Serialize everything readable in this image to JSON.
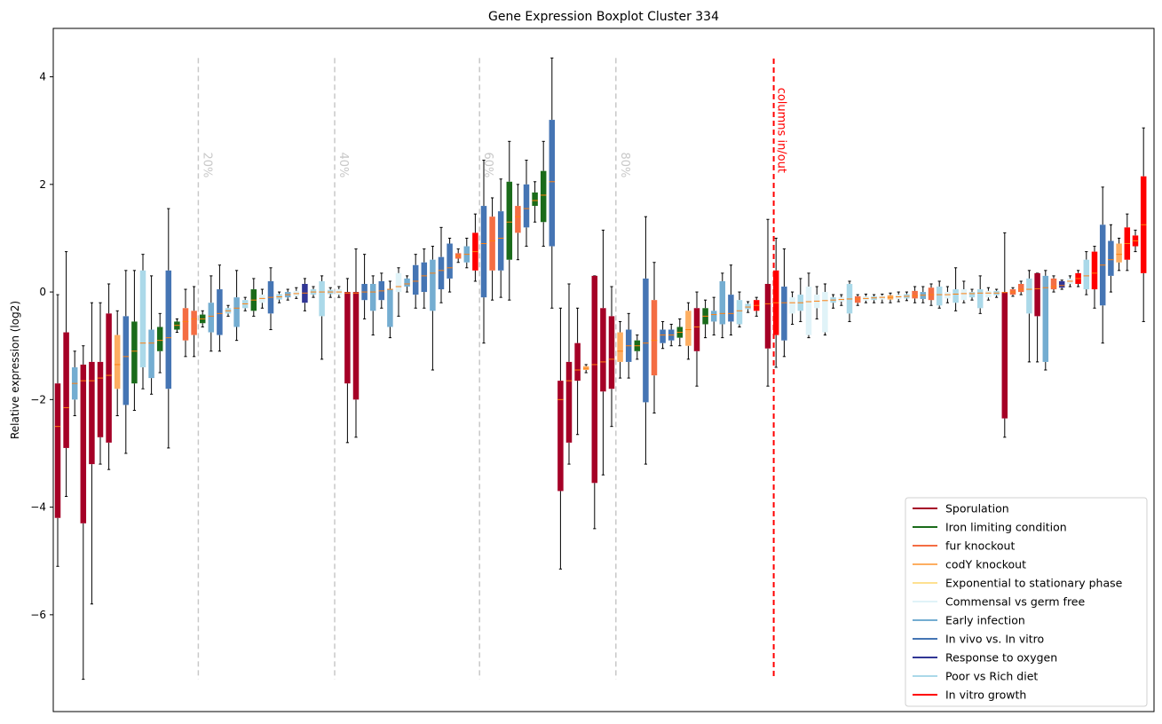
{
  "chart_data": {
    "type": "boxplot",
    "title": "Gene Expression Boxplot Cluster 334",
    "ylabel": "Relative expression (log2)",
    "xlabel": "",
    "ylim": [
      -7.8,
      4.9
    ],
    "yticks": [
      -6,
      -4,
      -2,
      0,
      2,
      4
    ],
    "grid": false,
    "legend_position": "lower-right",
    "percentile_markers": [
      {
        "label": "20%",
        "after_index": 16
      },
      {
        "label": "40%",
        "after_index": 32
      },
      {
        "label": "60%",
        "after_index": 49
      },
      {
        "label": "80%",
        "after_index": 65
      }
    ],
    "split_marker": {
      "label": "columns in/out",
      "after_index": 83
    },
    "series": [
      {
        "name": "Sporulation",
        "color": "#a50026"
      },
      {
        "name": "Iron limiting condition",
        "color": "#1a6b1a"
      },
      {
        "name": "fur knockout",
        "color": "#f46d43"
      },
      {
        "name": "codY knockout",
        "color": "#fdae61"
      },
      {
        "name": "Exponential to stationary phase",
        "color": "#fee090"
      },
      {
        "name": "Commensal vs germ free",
        "color": "#e0f3f8"
      },
      {
        "name": "Early infection",
        "color": "#74add1"
      },
      {
        "name": "In vivo vs. In vitro",
        "color": "#4575b4"
      },
      {
        "name": "Response to oxygen",
        "color": "#313695"
      },
      {
        "name": "Poor vs Rich diet",
        "color": "#abd9e9"
      },
      {
        "name": "In vitro growth",
        "color": "#ff0000"
      }
    ],
    "boxes": [
      {
        "s": 0,
        "q1": -4.2,
        "q3": -1.7,
        "med": -2.5,
        "lo": -5.1,
        "hi": -0.05
      },
      {
        "s": 0,
        "q1": -2.9,
        "q3": -0.75,
        "med": -2.15,
        "lo": -3.8,
        "hi": 0.75
      },
      {
        "s": 6,
        "q1": -2.0,
        "q3": -1.4,
        "med": -1.7,
        "lo": -2.3,
        "hi": -1.1
      },
      {
        "s": 0,
        "q1": -4.3,
        "q3": -1.35,
        "med": -1.65,
        "lo": -7.2,
        "hi": -1.0
      },
      {
        "s": 0,
        "q1": -3.2,
        "q3": -1.3,
        "med": -1.65,
        "lo": -5.8,
        "hi": -0.2
      },
      {
        "s": 0,
        "q1": -2.7,
        "q3": -1.3,
        "med": -1.6,
        "lo": -3.2,
        "hi": -0.2
      },
      {
        "s": 0,
        "q1": -2.8,
        "q3": -0.4,
        "med": -1.55,
        "lo": -3.3,
        "hi": 0.15
      },
      {
        "s": 3,
        "q1": -1.8,
        "q3": -0.8,
        "med": -1.35,
        "lo": -2.3,
        "hi": -0.35
      },
      {
        "s": 7,
        "q1": -2.1,
        "q3": -0.45,
        "med": -1.2,
        "lo": -3.0,
        "hi": 0.4
      },
      {
        "s": 1,
        "q1": -1.7,
        "q3": -0.55,
        "med": -1.1,
        "lo": -2.2,
        "hi": 0.4
      },
      {
        "s": 9,
        "q1": -1.4,
        "q3": 0.4,
        "med": -0.95,
        "lo": -1.8,
        "hi": 0.7
      },
      {
        "s": 6,
        "q1": -1.6,
        "q3": -0.7,
        "med": -0.95,
        "lo": -1.9,
        "hi": 0.3
      },
      {
        "s": 1,
        "q1": -1.1,
        "q3": -0.65,
        "med": -0.9,
        "lo": -1.5,
        "hi": -0.4
      },
      {
        "s": 7,
        "q1": -1.8,
        "q3": 0.4,
        "med": -0.85,
        "lo": -2.9,
        "hi": 1.55
      },
      {
        "s": 1,
        "q1": -0.7,
        "q3": -0.55,
        "med": -0.62,
        "lo": -0.75,
        "hi": -0.5
      },
      {
        "s": 2,
        "q1": -0.9,
        "q3": -0.3,
        "med": -0.55,
        "lo": -1.2,
        "hi": 0.05
      },
      {
        "s": 2,
        "q1": -0.8,
        "q3": -0.35,
        "med": -0.5,
        "lo": -1.2,
        "hi": 0.1
      },
      {
        "s": 1,
        "q1": -0.58,
        "q3": -0.42,
        "med": -0.5,
        "lo": -0.65,
        "hi": -0.35
      },
      {
        "s": 6,
        "q1": -0.75,
        "q3": -0.2,
        "med": -0.45,
        "lo": -1.1,
        "hi": 0.3
      },
      {
        "s": 7,
        "q1": -0.8,
        "q3": 0.05,
        "med": -0.4,
        "lo": -1.1,
        "hi": 0.5
      },
      {
        "s": 9,
        "q1": -0.4,
        "q3": -0.3,
        "med": -0.35,
        "lo": -0.45,
        "hi": -0.25
      },
      {
        "s": 6,
        "q1": -0.65,
        "q3": -0.1,
        "med": -0.3,
        "lo": -0.9,
        "hi": 0.4
      },
      {
        "s": 9,
        "q1": -0.3,
        "q3": -0.15,
        "med": -0.22,
        "lo": -0.35,
        "hi": -0.1
      },
      {
        "s": 1,
        "q1": -0.35,
        "q3": 0.05,
        "med": -0.15,
        "lo": -0.45,
        "hi": 0.25
      },
      {
        "s": 5,
        "q1": -0.2,
        "q3": -0.05,
        "med": -0.12,
        "lo": -0.3,
        "hi": 0.05
      },
      {
        "s": 7,
        "q1": -0.4,
        "q3": 0.2,
        "med": -0.1,
        "lo": -0.7,
        "hi": 0.45
      },
      {
        "s": 9,
        "q1": -0.14,
        "q3": -0.04,
        "med": -0.09,
        "lo": -0.2,
        "hi": 0.0
      },
      {
        "s": 6,
        "q1": -0.1,
        "q3": 0.0,
        "med": -0.05,
        "lo": -0.15,
        "hi": 0.05
      },
      {
        "s": 5,
        "q1": -0.08,
        "q3": 0.02,
        "med": -0.03,
        "lo": -0.12,
        "hi": 0.08
      },
      {
        "s": 8,
        "q1": -0.2,
        "q3": 0.15,
        "med": -0.02,
        "lo": -0.35,
        "hi": 0.25
      },
      {
        "s": 9,
        "q1": -0.05,
        "q3": 0.05,
        "med": 0.0,
        "lo": -0.1,
        "hi": 0.1
      },
      {
        "s": 9,
        "q1": -0.45,
        "q3": 0.2,
        "med": 0.0,
        "lo": -1.25,
        "hi": 0.3
      },
      {
        "s": 9,
        "q1": -0.04,
        "q3": 0.04,
        "med": 0.0,
        "lo": -0.1,
        "hi": 0.08
      },
      {
        "s": 5,
        "q1": -0.05,
        "q3": 0.05,
        "med": 0.0,
        "lo": -0.1,
        "hi": 0.1
      },
      {
        "s": 0,
        "q1": -1.7,
        "q3": 0.0,
        "med": -0.02,
        "lo": -2.8,
        "hi": 0.25
      },
      {
        "s": 0,
        "q1": -2.0,
        "q3": 0.0,
        "med": -0.02,
        "lo": -2.7,
        "hi": 0.8
      },
      {
        "s": 7,
        "q1": -0.15,
        "q3": 0.15,
        "med": 0.0,
        "lo": -0.5,
        "hi": 0.7
      },
      {
        "s": 6,
        "q1": -0.35,
        "q3": 0.15,
        "med": 0.0,
        "lo": -0.8,
        "hi": 0.3
      },
      {
        "s": 7,
        "q1": -0.15,
        "q3": 0.2,
        "med": 0.02,
        "lo": -0.3,
        "hi": 0.35
      },
      {
        "s": 6,
        "q1": -0.65,
        "q3": 0.05,
        "med": 0.05,
        "lo": -0.85,
        "hi": 0.2
      },
      {
        "s": 5,
        "q1": 0.0,
        "q3": 0.35,
        "med": 0.1,
        "lo": -0.45,
        "hi": 0.45
      },
      {
        "s": 6,
        "q1": 0.1,
        "q3": 0.25,
        "med": 0.15,
        "lo": 0.0,
        "hi": 0.3
      },
      {
        "s": 7,
        "q1": -0.05,
        "q3": 0.5,
        "med": 0.2,
        "lo": -0.3,
        "hi": 0.7
      },
      {
        "s": 7,
        "q1": 0.0,
        "q3": 0.55,
        "med": 0.3,
        "lo": -0.3,
        "hi": 0.8
      },
      {
        "s": 6,
        "q1": -0.35,
        "q3": 0.6,
        "med": 0.35,
        "lo": -1.45,
        "hi": 0.85
      },
      {
        "s": 7,
        "q1": 0.05,
        "q3": 0.65,
        "med": 0.4,
        "lo": -0.2,
        "hi": 1.2
      },
      {
        "s": 7,
        "q1": 0.25,
        "q3": 0.9,
        "med": 0.45,
        "lo": 0.0,
        "hi": 1.0
      },
      {
        "s": 2,
        "q1": 0.62,
        "q3": 0.72,
        "med": 0.67,
        "lo": 0.55,
        "hi": 0.8
      },
      {
        "s": 6,
        "q1": 0.55,
        "q3": 0.85,
        "med": 0.7,
        "lo": 0.45,
        "hi": 1.0
      },
      {
        "s": 10,
        "q1": 0.4,
        "q3": 1.1,
        "med": 0.75,
        "lo": 0.2,
        "hi": 1.45
      },
      {
        "s": 7,
        "q1": -0.1,
        "q3": 1.6,
        "med": 0.9,
        "lo": -0.95,
        "hi": 2.45
      },
      {
        "s": 2,
        "q1": 0.4,
        "q3": 1.4,
        "med": 0.95,
        "lo": -0.15,
        "hi": 1.75
      },
      {
        "s": 7,
        "q1": 0.4,
        "q3": 1.5,
        "med": 1.0,
        "lo": -0.1,
        "hi": 2.1
      },
      {
        "s": 1,
        "q1": 0.6,
        "q3": 2.05,
        "med": 1.3,
        "lo": -0.15,
        "hi": 2.8
      },
      {
        "s": 2,
        "q1": 1.1,
        "q3": 1.6,
        "med": 1.4,
        "lo": 0.6,
        "hi": 2.0
      },
      {
        "s": 7,
        "q1": 1.2,
        "q3": 2.0,
        "med": 1.55,
        "lo": 0.85,
        "hi": 2.45
      },
      {
        "s": 1,
        "q1": 1.6,
        "q3": 1.85,
        "med": 1.7,
        "lo": 1.3,
        "hi": 2.05
      },
      {
        "s": 1,
        "q1": 1.3,
        "q3": 2.25,
        "med": 1.8,
        "lo": 0.85,
        "hi": 2.8
      },
      {
        "s": 7,
        "q1": 0.85,
        "q3": 3.2,
        "med": 2.05,
        "lo": -0.3,
        "hi": 4.35
      },
      {
        "s": 0,
        "q1": -3.7,
        "q3": -1.65,
        "med": -2.0,
        "lo": -5.15,
        "hi": -0.3
      },
      {
        "s": 0,
        "q1": -2.8,
        "q3": -1.3,
        "med": -1.65,
        "lo": -3.2,
        "hi": 0.15
      },
      {
        "s": 0,
        "q1": -1.65,
        "q3": -0.95,
        "med": -1.45,
        "lo": -2.65,
        "hi": -0.3
      },
      {
        "s": 3,
        "q1": -1.45,
        "q3": -1.38,
        "med": -1.42,
        "lo": -1.5,
        "hi": -1.35
      },
      {
        "s": 0,
        "q1": -3.55,
        "q3": 0.3,
        "med": -1.35,
        "lo": -4.4,
        "hi": 0.3
      },
      {
        "s": 0,
        "q1": -1.85,
        "q3": -0.3,
        "med": -1.3,
        "lo": -3.4,
        "hi": 1.15
      },
      {
        "s": 0,
        "q1": -1.8,
        "q3": -0.45,
        "med": -1.25,
        "lo": -2.5,
        "hi": 0.1
      },
      {
        "s": 3,
        "q1": -1.3,
        "q3": -0.75,
        "med": -1.1,
        "lo": -1.6,
        "hi": -0.55
      },
      {
        "s": 7,
        "q1": -1.3,
        "q3": -0.7,
        "med": -1.0,
        "lo": -1.6,
        "hi": -0.4
      },
      {
        "s": 1,
        "q1": -1.1,
        "q3": -0.9,
        "med": -1.0,
        "lo": -1.25,
        "hi": -0.8
      },
      {
        "s": 7,
        "q1": -2.05,
        "q3": 0.25,
        "med": -0.95,
        "lo": -3.2,
        "hi": 1.4
      },
      {
        "s": 2,
        "q1": -1.55,
        "q3": -0.15,
        "med": -0.9,
        "lo": -2.25,
        "hi": 0.55
      },
      {
        "s": 7,
        "q1": -0.95,
        "q3": -0.7,
        "med": -0.8,
        "lo": -1.05,
        "hi": -0.55
      },
      {
        "s": 7,
        "q1": -0.9,
        "q3": -0.7,
        "med": -0.8,
        "lo": -1.0,
        "hi": -0.6
      },
      {
        "s": 1,
        "q1": -0.85,
        "q3": -0.65,
        "med": -0.75,
        "lo": -1.0,
        "hi": -0.5
      },
      {
        "s": 3,
        "q1": -1.0,
        "q3": -0.35,
        "med": -0.7,
        "lo": -1.25,
        "hi": -0.2
      },
      {
        "s": 0,
        "q1": -1.1,
        "q3": -0.3,
        "med": -0.65,
        "lo": -1.75,
        "hi": 0.0
      },
      {
        "s": 1,
        "q1": -0.6,
        "q3": -0.3,
        "med": -0.45,
        "lo": -0.85,
        "hi": -0.15
      },
      {
        "s": 6,
        "q1": -0.55,
        "q3": -0.35,
        "med": -0.42,
        "lo": -0.8,
        "hi": -0.1
      },
      {
        "s": 6,
        "q1": -0.6,
        "q3": 0.2,
        "med": -0.4,
        "lo": -0.85,
        "hi": 0.35
      },
      {
        "s": 7,
        "q1": -0.55,
        "q3": -0.05,
        "med": -0.4,
        "lo": -0.8,
        "hi": 0.5
      },
      {
        "s": 9,
        "q1": -0.6,
        "q3": -0.15,
        "med": -0.35,
        "lo": -0.65,
        "hi": 0.0
      },
      {
        "s": 9,
        "q1": -0.32,
        "q3": -0.22,
        "med": -0.28,
        "lo": -0.38,
        "hi": -0.18
      },
      {
        "s": 10,
        "q1": -0.35,
        "q3": -0.15,
        "med": -0.25,
        "lo": -0.45,
        "hi": -0.1
      }
    ],
    "boxes_right": [
      {
        "s": 0,
        "q1": -1.05,
        "q3": 0.15,
        "med": -0.22,
        "lo": -1.75,
        "hi": 1.35
      },
      {
        "s": 10,
        "q1": -0.8,
        "q3": 0.4,
        "med": -0.2,
        "lo": -1.4,
        "hi": 1.0
      },
      {
        "s": 7,
        "q1": -0.9,
        "q3": 0.1,
        "med": -0.2,
        "lo": -1.2,
        "hi": 0.8
      },
      {
        "s": 5,
        "q1": -0.4,
        "q3": -0.1,
        "med": -0.2,
        "lo": -0.6,
        "hi": 0.0
      },
      {
        "s": 9,
        "q1": -0.35,
        "q3": -0.05,
        "med": -0.2,
        "lo": -0.55,
        "hi": 0.25
      },
      {
        "s": 5,
        "q1": -0.8,
        "q3": 0.1,
        "med": -0.18,
        "lo": -0.85,
        "hi": 0.35
      },
      {
        "s": 5,
        "q1": -0.3,
        "q3": -0.05,
        "med": -0.17,
        "lo": -0.5,
        "hi": 0.1
      },
      {
        "s": 5,
        "q1": -0.75,
        "q3": 0.0,
        "med": -0.16,
        "lo": -0.8,
        "hi": 0.15
      },
      {
        "s": 9,
        "q1": -0.2,
        "q3": -0.1,
        "med": -0.15,
        "lo": -0.3,
        "hi": -0.05
      },
      {
        "s": 5,
        "q1": -0.18,
        "q3": -0.1,
        "med": -0.14,
        "lo": -0.25,
        "hi": -0.05
      },
      {
        "s": 9,
        "q1": -0.4,
        "q3": 0.15,
        "med": -0.13,
        "lo": -0.55,
        "hi": 0.2
      },
      {
        "s": 2,
        "q1": -0.2,
        "q3": -0.08,
        "med": -0.13,
        "lo": -0.25,
        "hi": -0.05
      },
      {
        "s": 5,
        "q1": -0.16,
        "q3": -0.08,
        "med": -0.12,
        "lo": -0.2,
        "hi": -0.04
      },
      {
        "s": 9,
        "q1": -0.15,
        "q3": -0.08,
        "med": -0.11,
        "lo": -0.2,
        "hi": -0.05
      },
      {
        "s": 5,
        "q1": -0.14,
        "q3": -0.07,
        "med": -0.1,
        "lo": -0.2,
        "hi": -0.04
      },
      {
        "s": 3,
        "q1": -0.14,
        "q3": -0.06,
        "med": -0.1,
        "lo": -0.2,
        "hi": -0.02
      },
      {
        "s": 5,
        "q1": -0.13,
        "q3": -0.05,
        "med": -0.09,
        "lo": -0.18,
        "hi": 0.0
      },
      {
        "s": 9,
        "q1": -0.12,
        "q3": -0.04,
        "med": -0.08,
        "lo": -0.16,
        "hi": 0.0
      },
      {
        "s": 2,
        "q1": -0.12,
        "q3": 0.02,
        "med": -0.07,
        "lo": -0.2,
        "hi": 0.1
      },
      {
        "s": 6,
        "q1": -0.13,
        "q3": 0.0,
        "med": -0.06,
        "lo": -0.2,
        "hi": 0.1
      },
      {
        "s": 2,
        "q1": -0.15,
        "q3": 0.08,
        "med": -0.05,
        "lo": -0.25,
        "hi": 0.15
      },
      {
        "s": 9,
        "q1": -0.25,
        "q3": 0.1,
        "med": -0.05,
        "lo": -0.3,
        "hi": 0.2
      },
      {
        "s": 5,
        "q1": -0.12,
        "q3": 0.0,
        "med": -0.05,
        "lo": -0.2,
        "hi": 0.1
      },
      {
        "s": 9,
        "q1": -0.2,
        "q3": 0.05,
        "med": -0.04,
        "lo": -0.35,
        "hi": 0.45
      },
      {
        "s": 5,
        "q1": -0.15,
        "q3": 0.05,
        "med": -0.03,
        "lo": -0.2,
        "hi": 0.2
      },
      {
        "s": 9,
        "q1": -0.1,
        "q3": 0.0,
        "med": -0.03,
        "lo": -0.15,
        "hi": 0.05
      },
      {
        "s": 9,
        "q1": -0.3,
        "q3": 0.05,
        "med": -0.02,
        "lo": -0.4,
        "hi": 0.3
      },
      {
        "s": 5,
        "q1": -0.1,
        "q3": 0.02,
        "med": -0.02,
        "lo": -0.15,
        "hi": 0.08
      },
      {
        "s": 9,
        "q1": -0.06,
        "q3": 0.02,
        "med": -0.02,
        "lo": -0.1,
        "hi": 0.05
      },
      {
        "s": 0,
        "q1": -2.35,
        "q3": 0.0,
        "med": -0.01,
        "lo": -2.7,
        "hi": 1.1
      },
      {
        "s": 2,
        "q1": -0.05,
        "q3": 0.05,
        "med": 0.0,
        "lo": -0.08,
        "hi": 0.08
      },
      {
        "s": 2,
        "q1": 0.0,
        "q3": 0.15,
        "med": 0.05,
        "lo": -0.05,
        "hi": 0.2
      },
      {
        "s": 9,
        "q1": -0.4,
        "q3": 0.25,
        "med": 0.05,
        "lo": -1.3,
        "hi": 0.4
      },
      {
        "s": 0,
        "q1": -0.45,
        "q3": 0.35,
        "med": 0.06,
        "lo": -1.3,
        "hi": 0.35
      },
      {
        "s": 6,
        "q1": -1.3,
        "q3": 0.3,
        "med": 0.08,
        "lo": -1.45,
        "hi": 0.4
      },
      {
        "s": 2,
        "q1": 0.05,
        "q3": 0.25,
        "med": 0.1,
        "lo": 0.0,
        "hi": 0.3
      },
      {
        "s": 8,
        "q1": 0.08,
        "q3": 0.2,
        "med": 0.12,
        "lo": 0.05,
        "hi": 0.22
      },
      {
        "s": 5,
        "q1": 0.15,
        "q3": 0.25,
        "med": 0.2,
        "lo": 0.1,
        "hi": 0.3
      },
      {
        "s": 10,
        "q1": 0.15,
        "q3": 0.35,
        "med": 0.25,
        "lo": 0.1,
        "hi": 0.4
      },
      {
        "s": 9,
        "q1": 0.05,
        "q3": 0.6,
        "med": 0.3,
        "lo": -0.05,
        "hi": 0.75
      },
      {
        "s": 10,
        "q1": 0.05,
        "q3": 0.75,
        "med": 0.35,
        "lo": -0.3,
        "hi": 0.85
      },
      {
        "s": 7,
        "q1": -0.25,
        "q3": 1.25,
        "med": 0.5,
        "lo": -0.95,
        "hi": 1.95
      },
      {
        "s": 7,
        "q1": 0.3,
        "q3": 0.95,
        "med": 0.6,
        "lo": 0.0,
        "hi": 1.25
      },
      {
        "s": 3,
        "q1": 0.55,
        "q3": 0.9,
        "med": 0.7,
        "lo": 0.4,
        "hi": 1.0
      },
      {
        "s": 10,
        "q1": 0.6,
        "q3": 1.2,
        "med": 0.9,
        "lo": 0.4,
        "hi": 1.45
      },
      {
        "s": 10,
        "q1": 0.85,
        "q3": 1.05,
        "med": 0.95,
        "lo": 0.75,
        "hi": 1.15
      },
      {
        "s": 10,
        "q1": 0.35,
        "q3": 2.15,
        "med": 1.25,
        "lo": -0.55,
        "hi": 3.05
      }
    ]
  }
}
